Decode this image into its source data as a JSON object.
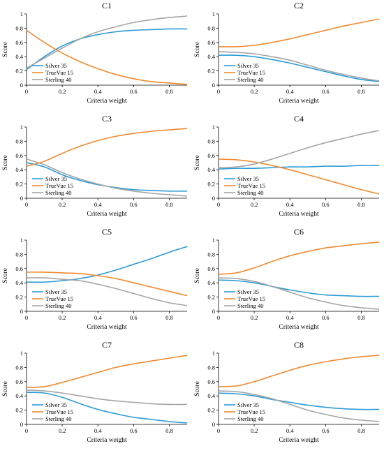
{
  "chart_data": [
    {
      "type": "line",
      "title": "C1",
      "xlabel": "Criteria weight",
      "ylabel": "Score",
      "xlim": [
        0,
        0.9
      ],
      "ylim": [
        0,
        1
      ],
      "legend": "bottom-left",
      "x": [
        0,
        0.1,
        0.2,
        0.3,
        0.4,
        0.5,
        0.6,
        0.7,
        0.8,
        0.9
      ],
      "series": [
        {
          "name": "Silver 35",
          "color": "#2e9bd6",
          "values": [
            0.22,
            0.4,
            0.55,
            0.65,
            0.71,
            0.75,
            0.77,
            0.78,
            0.79,
            0.79
          ]
        },
        {
          "name": "TrueVue 15",
          "color": "#f28a30",
          "values": [
            0.77,
            0.6,
            0.45,
            0.33,
            0.23,
            0.15,
            0.09,
            0.05,
            0.03,
            0.01
          ]
        },
        {
          "name": "Sterling 40",
          "color": "#a5a5a5",
          "values": [
            0.24,
            0.38,
            0.52,
            0.65,
            0.75,
            0.82,
            0.88,
            0.92,
            0.95,
            0.97
          ]
        }
      ]
    },
    {
      "type": "line",
      "title": "C2",
      "xlabel": "Criteria weight",
      "ylabel": "Score",
      "xlim": [
        0,
        0.9
      ],
      "ylim": [
        0,
        1
      ],
      "legend": "bottom-left",
      "x": [
        0,
        0.1,
        0.2,
        0.3,
        0.4,
        0.5,
        0.6,
        0.7,
        0.8,
        0.9
      ],
      "series": [
        {
          "name": "Silver 35",
          "color": "#2e9bd6",
          "values": [
            0.42,
            0.42,
            0.4,
            0.36,
            0.31,
            0.25,
            0.19,
            0.13,
            0.08,
            0.05
          ]
        },
        {
          "name": "TrueVue 15",
          "color": "#f28a30",
          "values": [
            0.54,
            0.54,
            0.56,
            0.6,
            0.65,
            0.71,
            0.77,
            0.83,
            0.88,
            0.93
          ]
        },
        {
          "name": "Sterling 40",
          "color": "#a5a5a5",
          "values": [
            0.47,
            0.46,
            0.44,
            0.4,
            0.35,
            0.28,
            0.21,
            0.15,
            0.1,
            0.06
          ]
        }
      ]
    },
    {
      "type": "line",
      "title": "C3",
      "xlabel": "Criteria weight",
      "ylabel": "Score",
      "xlim": [
        0,
        0.9
      ],
      "ylim": [
        0,
        1
      ],
      "legend": "bottom-left",
      "x": [
        0,
        0.1,
        0.2,
        0.3,
        0.4,
        0.5,
        0.6,
        0.7,
        0.8,
        0.9
      ],
      "series": [
        {
          "name": "Silver 35",
          "color": "#2e9bd6",
          "values": [
            0.5,
            0.44,
            0.33,
            0.25,
            0.19,
            0.15,
            0.12,
            0.11,
            0.1,
            0.1
          ]
        },
        {
          "name": "TrueVue 15",
          "color": "#f28a30",
          "values": [
            0.45,
            0.52,
            0.63,
            0.73,
            0.81,
            0.87,
            0.91,
            0.94,
            0.96,
            0.98
          ]
        },
        {
          "name": "Sterling 40",
          "color": "#a5a5a5",
          "values": [
            0.55,
            0.47,
            0.36,
            0.27,
            0.2,
            0.14,
            0.1,
            0.07,
            0.05,
            0.03
          ]
        }
      ]
    },
    {
      "type": "line",
      "title": "C4",
      "xlabel": "Criteria weight",
      "ylabel": "Score",
      "xlim": [
        0,
        0.9
      ],
      "ylim": [
        0,
        1
      ],
      "legend": "bottom-left",
      "x": [
        0,
        0.1,
        0.2,
        0.3,
        0.4,
        0.5,
        0.6,
        0.7,
        0.8,
        0.9
      ],
      "series": [
        {
          "name": "Silver 35",
          "color": "#2e9bd6",
          "values": [
            0.41,
            0.42,
            0.42,
            0.43,
            0.44,
            0.44,
            0.45,
            0.45,
            0.46,
            0.46
          ]
        },
        {
          "name": "TrueVue 15",
          "color": "#f28a30",
          "values": [
            0.55,
            0.54,
            0.51,
            0.46,
            0.4,
            0.33,
            0.26,
            0.19,
            0.12,
            0.06
          ]
        },
        {
          "name": "Sterling 40",
          "color": "#a5a5a5",
          "values": [
            0.43,
            0.44,
            0.48,
            0.55,
            0.63,
            0.71,
            0.78,
            0.84,
            0.9,
            0.95
          ]
        }
      ]
    },
    {
      "type": "line",
      "title": "C5",
      "xlabel": "Criteria weight",
      "ylabel": "Score",
      "xlim": [
        0,
        0.9
      ],
      "ylim": [
        0,
        1
      ],
      "legend": "bottom-left",
      "x": [
        0,
        0.1,
        0.2,
        0.3,
        0.4,
        0.5,
        0.6,
        0.7,
        0.8,
        0.9
      ],
      "series": [
        {
          "name": "Silver 35",
          "color": "#2e9bd6",
          "values": [
            0.41,
            0.41,
            0.43,
            0.46,
            0.51,
            0.58,
            0.66,
            0.74,
            0.83,
            0.91
          ]
        },
        {
          "name": "TrueVue 15",
          "color": "#f28a30",
          "values": [
            0.55,
            0.55,
            0.54,
            0.53,
            0.5,
            0.46,
            0.4,
            0.34,
            0.28,
            0.22
          ]
        },
        {
          "name": "Sterling 40",
          "color": "#a5a5a5",
          "values": [
            0.47,
            0.47,
            0.45,
            0.43,
            0.38,
            0.32,
            0.25,
            0.18,
            0.12,
            0.08
          ]
        }
      ]
    },
    {
      "type": "line",
      "title": "C6",
      "xlabel": "Criteria weight",
      "ylabel": "Score",
      "xlim": [
        0,
        0.9
      ],
      "ylim": [
        0,
        1
      ],
      "legend": "bottom-left",
      "x": [
        0,
        0.1,
        0.2,
        0.3,
        0.4,
        0.5,
        0.6,
        0.7,
        0.8,
        0.9
      ],
      "series": [
        {
          "name": "Silver 35",
          "color": "#2e9bd6",
          "values": [
            0.44,
            0.43,
            0.4,
            0.35,
            0.3,
            0.26,
            0.23,
            0.22,
            0.21,
            0.21
          ]
        },
        {
          "name": "TrueVue 15",
          "color": "#f28a30",
          "values": [
            0.52,
            0.54,
            0.61,
            0.7,
            0.78,
            0.84,
            0.89,
            0.92,
            0.95,
            0.97
          ]
        },
        {
          "name": "Sterling 40",
          "color": "#a5a5a5",
          "values": [
            0.47,
            0.46,
            0.42,
            0.35,
            0.27,
            0.19,
            0.13,
            0.08,
            0.05,
            0.03
          ]
        }
      ]
    },
    {
      "type": "line",
      "title": "C7",
      "xlabel": "Criteria weight",
      "ylabel": "Score",
      "xlim": [
        0,
        0.9
      ],
      "ylim": [
        0,
        1
      ],
      "legend": "bottom-left",
      "x": [
        0,
        0.1,
        0.2,
        0.3,
        0.4,
        0.5,
        0.6,
        0.7,
        0.8,
        0.9
      ],
      "series": [
        {
          "name": "Silver 35",
          "color": "#2e9bd6",
          "values": [
            0.45,
            0.44,
            0.38,
            0.29,
            0.21,
            0.15,
            0.1,
            0.07,
            0.04,
            0.02
          ]
        },
        {
          "name": "TrueVue 15",
          "color": "#f28a30",
          "values": [
            0.52,
            0.53,
            0.59,
            0.66,
            0.73,
            0.8,
            0.85,
            0.89,
            0.93,
            0.97
          ]
        },
        {
          "name": "Sterling 40",
          "color": "#a5a5a5",
          "values": [
            0.48,
            0.47,
            0.44,
            0.4,
            0.36,
            0.33,
            0.31,
            0.29,
            0.28,
            0.28
          ]
        }
      ]
    },
    {
      "type": "line",
      "title": "C8",
      "xlabel": "Criteria weight",
      "ylabel": "Score",
      "xlim": [
        0,
        0.9
      ],
      "ylim": [
        0,
        1
      ],
      "legend": "bottom-left",
      "x": [
        0,
        0.1,
        0.2,
        0.3,
        0.4,
        0.5,
        0.6,
        0.7,
        0.8,
        0.9
      ],
      "series": [
        {
          "name": "Silver 35",
          "color": "#2e9bd6",
          "values": [
            0.44,
            0.43,
            0.4,
            0.35,
            0.31,
            0.27,
            0.24,
            0.22,
            0.21,
            0.21
          ]
        },
        {
          "name": "TrueVue 15",
          "color": "#f28a30",
          "values": [
            0.53,
            0.54,
            0.6,
            0.68,
            0.76,
            0.83,
            0.88,
            0.92,
            0.95,
            0.97
          ]
        },
        {
          "name": "Sterling 40",
          "color": "#a5a5a5",
          "values": [
            0.47,
            0.46,
            0.42,
            0.36,
            0.28,
            0.2,
            0.14,
            0.09,
            0.06,
            0.04
          ]
        }
      ]
    }
  ],
  "axes": {
    "x_ticks": [
      "0",
      "0.2",
      "0.4",
      "0.6",
      "0.8"
    ],
    "y_ticks": [
      "0",
      "0.2",
      "0.4",
      "0.6",
      "0.8",
      "1"
    ]
  }
}
